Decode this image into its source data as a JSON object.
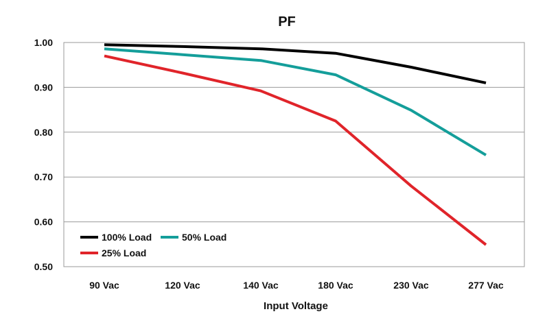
{
  "chart_data": {
    "type": "line",
    "title": "PF",
    "xlabel": "Input Voltage",
    "ylabel": "",
    "categories": [
      "90 Vac",
      "120 Vac",
      "140 Vac",
      "180 Vac",
      "230 Vac",
      "277 Vac"
    ],
    "ylim": [
      0.5,
      1.0
    ],
    "yticks": [
      "0.50",
      "0.60",
      "0.70",
      "0.80",
      "0.90",
      "1.00"
    ],
    "grid": true,
    "legend_position": "bottom-left",
    "series": [
      {
        "name": "100% Load",
        "color": "#000000",
        "values": [
          0.995,
          0.991,
          0.986,
          0.976,
          0.945,
          0.91
        ]
      },
      {
        "name": "50% Load",
        "color": "#149e9a",
        "values": [
          0.986,
          0.973,
          0.96,
          0.928,
          0.849,
          0.749
        ]
      },
      {
        "name": "25% Load",
        "color": "#e0242a",
        "values": [
          0.97,
          0.932,
          0.892,
          0.825,
          0.68,
          0.549
        ]
      }
    ]
  }
}
